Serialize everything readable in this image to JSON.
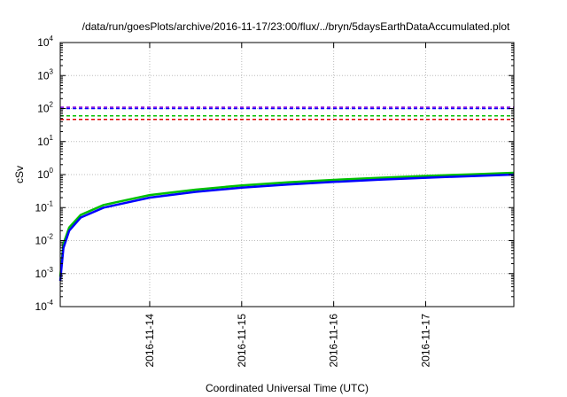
{
  "chart_data": {
    "type": "line",
    "title": "/data/run/goesPlots/archive/2016-11-17/23:00/flux/../bryn/5daysEarthDataAccumulated.plot",
    "xlabel": "Coordinated Universal Time (UTC)",
    "ylabel": "cSv",
    "y_scale": "log",
    "ylim": [
      0.0001,
      10000
    ],
    "xlim": [
      "2016-11-13T00:40",
      "2016-11-17T23:00"
    ],
    "grid": true,
    "legend": "none",
    "x_ticks": [
      "2016-11-14",
      "2016-11-15",
      "2016-11-16",
      "2016-11-17"
    ],
    "y_ticks": [
      {
        "base": "10",
        "exp": "-4",
        "value": 0.0001
      },
      {
        "base": "10",
        "exp": "-3",
        "value": 0.001
      },
      {
        "base": "10",
        "exp": "-2",
        "value": 0.01
      },
      {
        "base": "10",
        "exp": "-1",
        "value": 0.1
      },
      {
        "base": "10",
        "exp": "0",
        "value": 1
      },
      {
        "base": "10",
        "exp": "1",
        "value": 10
      },
      {
        "base": "10",
        "exp": "2",
        "value": 100
      },
      {
        "base": "10",
        "exp": "3",
        "value": 1000
      },
      {
        "base": "10",
        "exp": "4",
        "value": 10000
      }
    ],
    "thresholds": [
      {
        "value": 110,
        "color": "#9400d3"
      },
      {
        "value": 100,
        "color": "#0000ff"
      },
      {
        "value": 60,
        "color": "#00c000"
      },
      {
        "value": 47,
        "color": "#e00000"
      }
    ],
    "series": [
      {
        "color": "#00c000",
        "x": [
          "2016-11-13T00:40",
          "2016-11-13T01:30",
          "2016-11-13T03:00",
          "2016-11-13T06:00",
          "2016-11-13T12:00",
          "2016-11-14T00:00",
          "2016-11-14T12:00",
          "2016-11-15T00:00",
          "2016-11-15T12:00",
          "2016-11-16T00:00",
          "2016-11-16T12:00",
          "2016-11-17T00:00",
          "2016-11-17T12:00",
          "2016-11-17T23:00"
        ],
        "values": [
          0.0008,
          0.008,
          0.025,
          0.06,
          0.12,
          0.24,
          0.35,
          0.47,
          0.58,
          0.69,
          0.8,
          0.91,
          1.02,
          1.13
        ]
      },
      {
        "color": "#0000ff",
        "x": [
          "2016-11-13T00:40",
          "2016-11-13T01:30",
          "2016-11-13T03:00",
          "2016-11-13T06:00",
          "2016-11-13T12:00",
          "2016-11-14T00:00",
          "2016-11-14T12:00",
          "2016-11-15T00:00",
          "2016-11-15T12:00",
          "2016-11-16T00:00",
          "2016-11-16T12:00",
          "2016-11-17T00:00",
          "2016-11-17T12:00",
          "2016-11-17T23:00"
        ],
        "values": [
          0.0006,
          0.006,
          0.02,
          0.05,
          0.1,
          0.2,
          0.3,
          0.4,
          0.5,
          0.6,
          0.7,
          0.8,
          0.9,
          1.0
        ]
      }
    ]
  }
}
